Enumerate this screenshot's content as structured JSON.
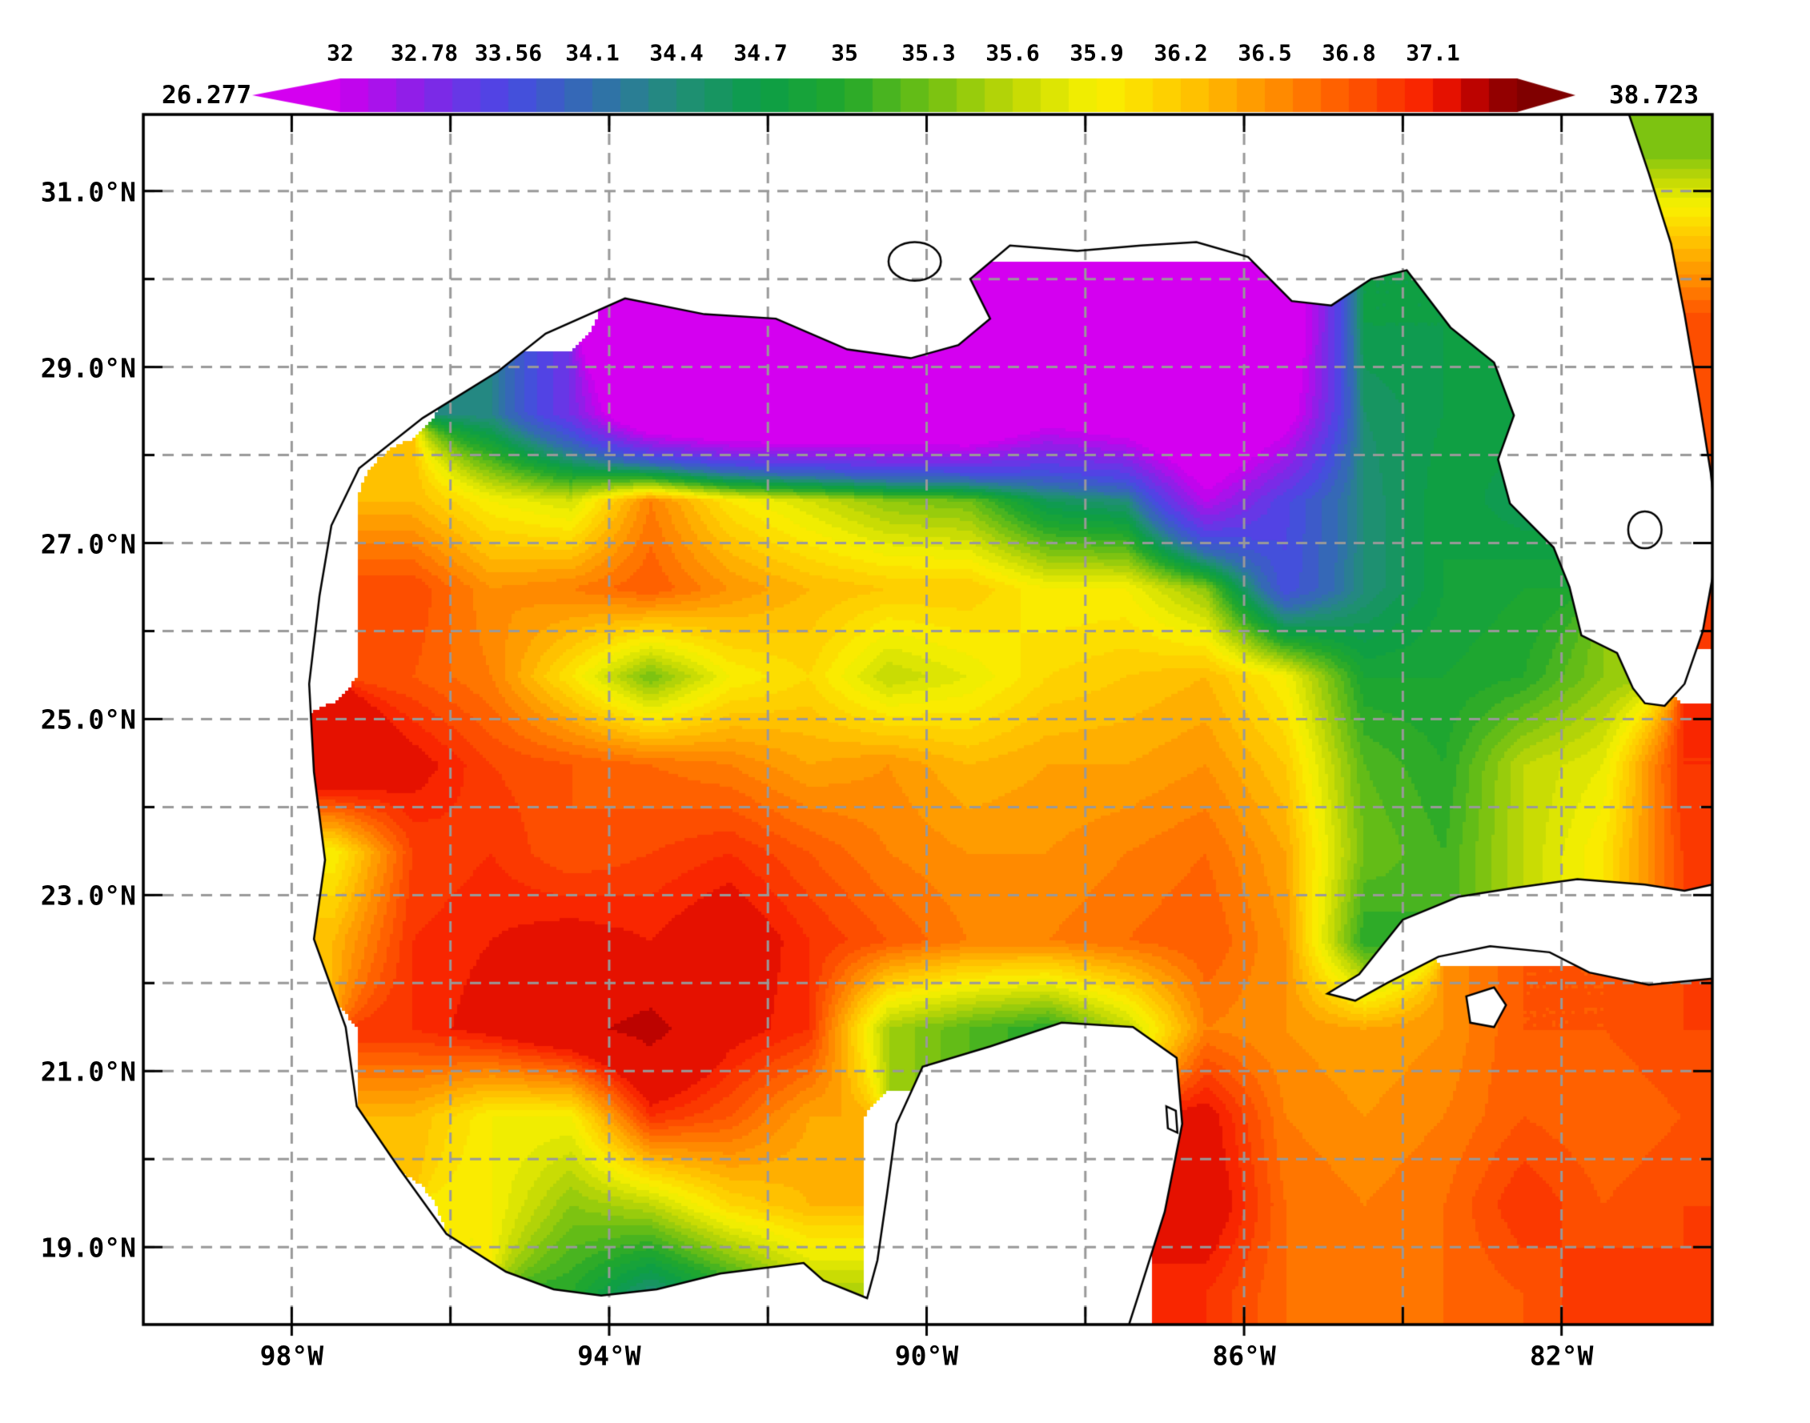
{
  "figure": {
    "background": "#ffffff",
    "frame_color": "#000000",
    "grid_color": "#999999"
  },
  "colorbar": {
    "min_label": "26.277",
    "max_label": "38.723",
    "range_min": 26.277,
    "range_max": 38.723,
    "left_arrow_color": "#d400f0",
    "right_arrow_color": "#800000",
    "ticks": [
      {
        "label": "32",
        "value": 32
      },
      {
        "label": "32.78",
        "value": 32.78
      },
      {
        "label": "33.56",
        "value": 33.56
      },
      {
        "label": "34.1",
        "value": 34.1
      },
      {
        "label": "34.4",
        "value": 34.4
      },
      {
        "label": "34.7",
        "value": 34.7
      },
      {
        "label": "35",
        "value": 35
      },
      {
        "label": "35.3",
        "value": 35.3
      },
      {
        "label": "35.6",
        "value": 35.6
      },
      {
        "label": "35.9",
        "value": 35.9
      },
      {
        "label": "36.2",
        "value": 36.2
      },
      {
        "label": "36.5",
        "value": 36.5
      },
      {
        "label": "36.8",
        "value": 36.8
      },
      {
        "label": "37.1",
        "value": 37.1
      }
    ]
  },
  "axes": {
    "x_ticks": [
      {
        "label": "98°W",
        "lon": 98
      },
      {
        "label": "94°W",
        "lon": 94
      },
      {
        "label": "90°W",
        "lon": 90
      },
      {
        "label": "86°W",
        "lon": 86
      },
      {
        "label": "82°W",
        "lon": 82
      }
    ],
    "y_ticks": [
      {
        "label": "31.0°N",
        "lat": 31
      },
      {
        "label": "29.0°N",
        "lat": 29
      },
      {
        "label": "27.0°N",
        "lat": 27
      },
      {
        "label": "25.0°N",
        "lat": 25
      },
      {
        "label": "23.0°N",
        "lat": 23
      },
      {
        "label": "21.0°N",
        "lat": 21
      },
      {
        "label": "19.0°N",
        "lat": 19
      }
    ],
    "lon_gridlines": [
      98,
      96,
      94,
      92,
      90,
      88,
      86,
      84,
      82
    ],
    "lat_gridlines": [
      31,
      30,
      29,
      28,
      27,
      26,
      25,
      24,
      23,
      22,
      21,
      20,
      19
    ],
    "lon_left": 99.87,
    "lon_right": 80.1,
    "lat_top": 31.87,
    "lat_bottom": 18.12
  },
  "chart_data": {
    "type": "heatmap",
    "x_axis": "longitude_deg_west",
    "y_axis": "latitude_deg_north",
    "grid_on": true,
    "colorbar_min": 26.277,
    "colorbar_max": 38.723,
    "colorbar_levels": [
      32,
      32.78,
      33.56,
      34.1,
      34.4,
      34.7,
      35,
      35.3,
      35.6,
      35.9,
      36.2,
      36.5,
      36.8,
      37.1
    ],
    "lon_centers": [
      99.5,
      98.5,
      97.5,
      96.5,
      95.5,
      94.5,
      93.5,
      92.5,
      91.5,
      90.5,
      89.5,
      88.5,
      87.5,
      86.5,
      85.5,
      84.5,
      83.5,
      82.5,
      81.5,
      80.5
    ],
    "lat_centers": [
      31.5,
      30.5,
      29.5,
      28.5,
      27.5,
      26.5,
      25.5,
      24.5,
      23.5,
      22.5,
      21.5,
      20.5,
      19.5,
      18.5
    ],
    "values": [
      [
        null,
        null,
        null,
        null,
        null,
        null,
        null,
        null,
        null,
        null,
        null,
        null,
        null,
        null,
        null,
        null,
        null,
        null,
        null,
        35.3
      ],
      [
        null,
        null,
        null,
        null,
        null,
        null,
        null,
        null,
        null,
        null,
        null,
        null,
        null,
        null,
        null,
        null,
        null,
        null,
        null,
        36.2
      ],
      [
        null,
        null,
        null,
        null,
        null,
        null,
        30,
        30.2,
        30.2,
        null,
        30,
        30,
        30,
        30,
        31,
        34.7,
        34.7,
        null,
        null,
        36.9
      ],
      [
        null,
        null,
        null,
        null,
        34.3,
        33,
        30.5,
        30,
        30,
        30,
        30,
        31.5,
        31,
        30.2,
        31.5,
        34.5,
        34.7,
        34.8,
        null,
        36.8
      ],
      [
        null,
        null,
        null,
        36.3,
        35.9,
        35.7,
        36.6,
        36,
        35.7,
        35.4,
        35.3,
        34.6,
        34.4,
        32.2,
        33.5,
        34.4,
        34.8,
        34.6,
        null,
        36.8
      ],
      [
        null,
        null,
        null,
        36.9,
        36.5,
        36.6,
        36.8,
        36.5,
        36.3,
        36.2,
        36.2,
        35.9,
        35.9,
        35.4,
        33.6,
        34.4,
        34.8,
        34.9,
        null,
        36.9
      ],
      [
        null,
        null,
        null,
        36.8,
        36.6,
        36,
        35.3,
        35.9,
        36.1,
        35.6,
        35.8,
        36.1,
        36.2,
        36.3,
        35.9,
        34.9,
        34.9,
        35,
        35.4,
        null
      ],
      [
        null,
        null,
        37.6,
        37.2,
        36.9,
        36.8,
        36.7,
        36.6,
        36.4,
        36.5,
        36.3,
        36.4,
        36.4,
        36.5,
        36.2,
        35.2,
        35,
        35.6,
        35.8,
        37
      ],
      [
        null,
        null,
        35.9,
        36.9,
        37,
        36.8,
        36.9,
        37,
        36.8,
        36.6,
        36.5,
        36.5,
        36.6,
        36.7,
        36.4,
        35.3,
        35.1,
        35.6,
        36,
        36.9
      ],
      [
        null,
        null,
        36.3,
        37,
        37.1,
        37.2,
        37.1,
        37.3,
        37,
        36.8,
        36.6,
        36.6,
        36.7,
        36.8,
        36.5,
        35,
        null,
        null,
        null,
        null
      ],
      [
        null,
        null,
        null,
        37,
        37.2,
        37.5,
        37.8,
        37.2,
        37,
        35.5,
        35.2,
        35,
        35.6,
        36.6,
        36.5,
        36.4,
        36.5,
        36.8,
        36.8,
        36.9
      ],
      [
        null,
        null,
        null,
        36.3,
        35.9,
        35.9,
        37,
        36.8,
        36.4,
        null,
        null,
        null,
        null,
        37.2,
        36.6,
        36.5,
        36.6,
        36.8,
        36.7,
        36.8
      ],
      [
        null,
        null,
        null,
        null,
        35.9,
        35.4,
        35.6,
        36.1,
        36.3,
        null,
        null,
        null,
        null,
        37.3,
        36.7,
        36.6,
        36.7,
        37,
        36.8,
        36.9
      ],
      [
        null,
        null,
        null,
        null,
        null,
        35,
        34.4,
        34.9,
        35.5,
        null,
        null,
        null,
        null,
        37,
        36.7,
        36.6,
        36.7,
        36.8,
        37,
        36.9
      ]
    ],
    "palette": [
      [
        26.277,
        "#d400f0"
      ],
      [
        31.99,
        "#d400f0"
      ],
      [
        32,
        "#cc00ee"
      ],
      [
        32.78,
        "#8624e8"
      ],
      [
        33.56,
        "#484ae4"
      ],
      [
        34.1,
        "#326eaf"
      ],
      [
        34.4,
        "#228e7a"
      ],
      [
        34.7,
        "#0c9e48"
      ],
      [
        35,
        "#22a82c"
      ],
      [
        35.3,
        "#70c014"
      ],
      [
        35.6,
        "#c0d806"
      ],
      [
        35.9,
        "#faf200"
      ],
      [
        36.2,
        "#ffca00"
      ],
      [
        36.5,
        "#ff9400"
      ],
      [
        36.8,
        "#ff5800"
      ],
      [
        37.1,
        "#f81c00"
      ],
      [
        37.6,
        "#d60800"
      ],
      [
        38.2,
        "#a50000"
      ],
      [
        38.723,
        "#800000"
      ]
    ],
    "land_polygons": {
      "mainland_gulf_coast": [
        [
          99.87,
          31.87
        ],
        [
          81.15,
          31.87
        ],
        [
          80.9,
          31.2
        ],
        [
          80.62,
          30.4
        ],
        [
          80.45,
          29.6
        ],
        [
          80.28,
          28.7
        ],
        [
          80.12,
          27.8
        ],
        [
          80.05,
          27.2
        ],
        [
          80.1,
          26.6
        ],
        [
          80.22,
          26.0
        ],
        [
          80.45,
          25.4
        ],
        [
          80.7,
          25.15
        ],
        [
          80.95,
          25.18
        ],
        [
          81.1,
          25.35
        ],
        [
          81.3,
          25.75
        ],
        [
          81.75,
          25.95
        ],
        [
          81.9,
          26.5
        ],
        [
          82.1,
          26.95
        ],
        [
          82.65,
          27.45
        ],
        [
          82.8,
          27.95
        ],
        [
          82.6,
          28.45
        ],
        [
          82.85,
          29.05
        ],
        [
          83.4,
          29.45
        ],
        [
          83.95,
          30.1
        ],
        [
          84.4,
          30.0
        ],
        [
          84.9,
          29.7
        ],
        [
          85.4,
          29.75
        ],
        [
          85.95,
          30.25
        ],
        [
          86.6,
          30.42
        ],
        [
          87.3,
          30.38
        ],
        [
          88.1,
          30.32
        ],
        [
          88.95,
          30.38
        ],
        [
          89.45,
          30.0
        ],
        [
          89.2,
          29.55
        ],
        [
          89.6,
          29.25
        ],
        [
          90.2,
          29.1
        ],
        [
          91.0,
          29.2
        ],
        [
          91.9,
          29.55
        ],
        [
          92.8,
          29.6
        ],
        [
          93.8,
          29.78
        ],
        [
          94.8,
          29.38
        ],
        [
          95.4,
          28.95
        ],
        [
          96.35,
          28.42
        ],
        [
          97.15,
          27.85
        ],
        [
          97.5,
          27.2
        ],
        [
          97.65,
          26.4
        ],
        [
          97.78,
          25.4
        ],
        [
          97.72,
          24.4
        ],
        [
          97.58,
          23.4
        ],
        [
          97.72,
          22.5
        ],
        [
          97.32,
          21.5
        ],
        [
          97.18,
          20.6
        ],
        [
          96.65,
          19.9
        ],
        [
          96.05,
          19.15
        ],
        [
          95.3,
          18.72
        ],
        [
          94.7,
          18.52
        ],
        [
          94.1,
          18.45
        ],
        [
          93.4,
          18.52
        ],
        [
          92.6,
          18.7
        ],
        [
          91.9,
          18.78
        ],
        [
          91.55,
          18.82
        ],
        [
          91.3,
          18.62
        ],
        [
          90.75,
          18.42
        ],
        [
          90.62,
          18.85
        ],
        [
          90.5,
          19.6
        ],
        [
          90.38,
          20.4
        ],
        [
          90.05,
          21.05
        ],
        [
          89.2,
          21.28
        ],
        [
          88.3,
          21.55
        ],
        [
          87.4,
          21.5
        ],
        [
          86.85,
          21.15
        ],
        [
          86.78,
          20.4
        ],
        [
          87.0,
          19.4
        ],
        [
          87.35,
          18.4
        ],
        [
          87.45,
          18.12
        ],
        [
          99.87,
          18.12
        ]
      ],
      "cuba": [
        [
          84.95,
          21.88
        ],
        [
          84.55,
          22.1
        ],
        [
          84.0,
          22.72
        ],
        [
          83.3,
          22.98
        ],
        [
          82.6,
          23.08
        ],
        [
          81.8,
          23.18
        ],
        [
          80.95,
          23.12
        ],
        [
          80.45,
          23.05
        ],
        [
          80.1,
          23.12
        ],
        [
          80.1,
          22.05
        ],
        [
          80.9,
          21.98
        ],
        [
          81.65,
          22.12
        ],
        [
          82.15,
          22.35
        ],
        [
          82.9,
          22.42
        ],
        [
          83.55,
          22.3
        ],
        [
          84.2,
          22.0
        ],
        [
          84.6,
          21.8
        ]
      ],
      "isle_of_youth": [
        [
          83.2,
          21.85
        ],
        [
          82.85,
          21.95
        ],
        [
          82.7,
          21.75
        ],
        [
          82.85,
          21.5
        ],
        [
          83.15,
          21.55
        ]
      ],
      "cozumel": [
        [
          86.98,
          20.6
        ],
        [
          86.86,
          20.55
        ],
        [
          86.84,
          20.3
        ],
        [
          86.96,
          20.35
        ]
      ]
    },
    "lakes": [
      {
        "lon": 90.15,
        "lat": 30.2,
        "rx": 0.33,
        "ry": 0.22
      },
      {
        "lon": 80.95,
        "lat": 27.15,
        "rx": 0.21,
        "ry": 0.21
      }
    ]
  }
}
